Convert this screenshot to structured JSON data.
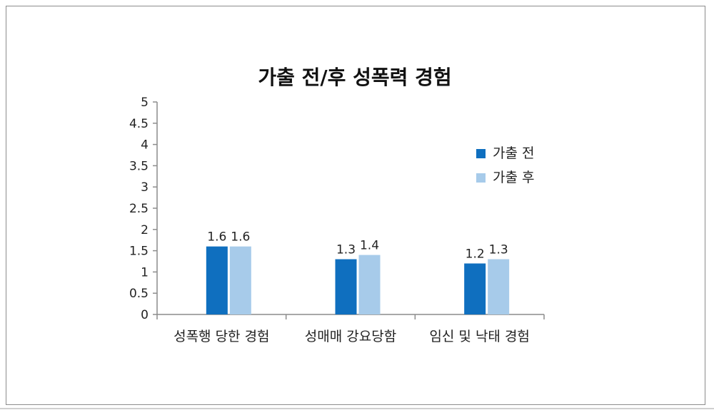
{
  "chart_data": {
    "type": "bar",
    "title": "가출 전/후 성폭력 경험",
    "categories": [
      "성폭행 당한 경험",
      "성매매 강요당함",
      "임신 및 낙태 경험"
    ],
    "series": [
      {
        "name": "가출 전",
        "values": [
          1.6,
          1.3,
          1.2
        ],
        "color": "#0f6fbf"
      },
      {
        "name": "가출 후",
        "values": [
          1.6,
          1.4,
          1.3
        ],
        "color": "#a7cbea"
      }
    ],
    "ylim": [
      0,
      5
    ],
    "yticks": [
      "0",
      "0.5",
      "1",
      "1.5",
      "2",
      "2.5",
      "3",
      "3.5",
      "4",
      "4.5",
      "5"
    ],
    "grid": false,
    "legend": "right"
  }
}
